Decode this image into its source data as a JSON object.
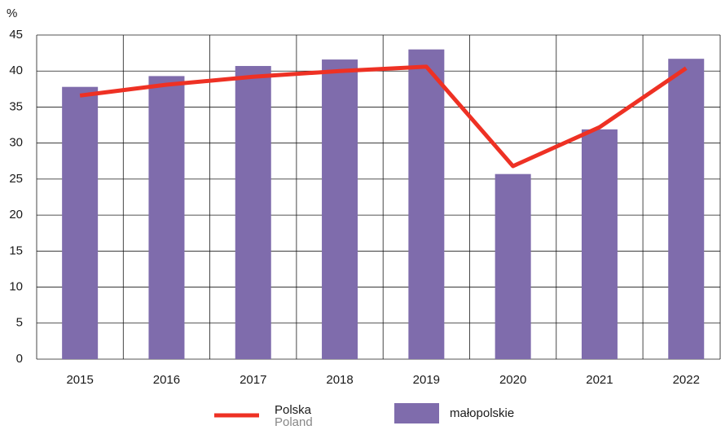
{
  "chart_data": {
    "type": "bar_line",
    "y_label": "%",
    "categories": [
      "2015",
      "2016",
      "2017",
      "2018",
      "2019",
      "2020",
      "2021",
      "2022"
    ],
    "series": [
      {
        "name": "małopolskie",
        "type": "bar",
        "color": "#7f6cac",
        "values": [
          37.8,
          39.3,
          40.7,
          41.6,
          43.0,
          25.7,
          31.9,
          41.7
        ]
      },
      {
        "name": "Polska",
        "name_en": "Poland",
        "type": "line",
        "color": "#ee3124",
        "values": [
          36.6,
          38.1,
          39.2,
          40.0,
          40.6,
          26.8,
          32.2,
          40.4
        ]
      }
    ],
    "ylim": [
      0,
      45
    ],
    "yticks": [
      0,
      5,
      10,
      15,
      20,
      25,
      30,
      35,
      40,
      45
    ],
    "grid": true
  }
}
